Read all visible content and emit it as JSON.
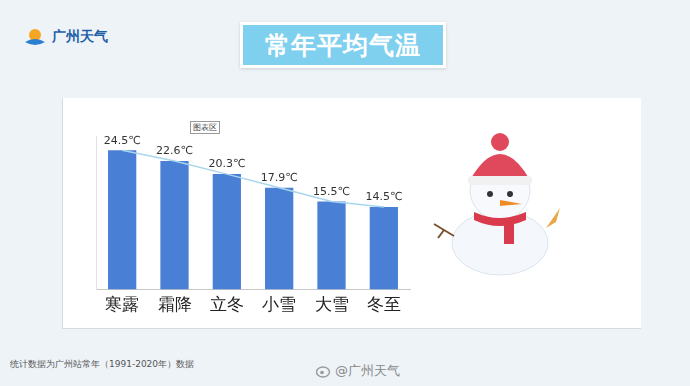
{
  "header": {
    "logo_text": "广州天气",
    "title": "常年平均气温"
  },
  "chart_data": {
    "type": "bar",
    "categories": [
      "寒露",
      "霜降",
      "立冬",
      "小雪",
      "大雪",
      "冬至"
    ],
    "series": [
      {
        "type": "bar",
        "color": "#4a7fd6",
        "values": [
          24.5,
          22.6,
          20.3,
          17.9,
          15.5,
          14.5
        ],
        "value_labels": [
          "24.5℃",
          "22.6℃",
          "20.3℃",
          "17.9℃",
          "15.5℃",
          "14.5℃"
        ]
      },
      {
        "type": "line",
        "color": "#a9d6ef",
        "values": [
          24.5,
          22.6,
          20.3,
          17.9,
          15.5,
          14.5
        ]
      }
    ],
    "ylim": [
      0,
      27
    ],
    "yticks": [],
    "grid": false,
    "data_labels": true,
    "tick_labels": "x",
    "annotation": "图表区"
  },
  "footer": {
    "note": "统计数据为广州站常年（1991-2020年）数据",
    "watermark": "@广州天气"
  }
}
